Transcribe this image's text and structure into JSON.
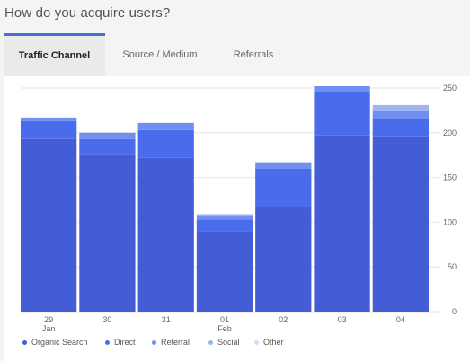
{
  "header": {
    "title": "How do you acquire users?"
  },
  "tabs": [
    {
      "label": "Traffic Channel",
      "active": true
    },
    {
      "label": "Source / Medium",
      "active": false
    },
    {
      "label": "Referrals",
      "active": false
    }
  ],
  "chart_data": {
    "type": "bar",
    "stacked": true,
    "categories": [
      "29",
      "30",
      "31",
      "01",
      "02",
      "03",
      "04"
    ],
    "category_sublabels": [
      "Jan",
      "",
      "",
      "Feb",
      "",
      "",
      ""
    ],
    "series": [
      {
        "name": "Organic Search",
        "color": "#445cd6",
        "values": [
          193,
          175,
          172,
          90,
          117,
          197,
          195
        ]
      },
      {
        "name": "Direct",
        "color": "#4a6cea",
        "values": [
          20,
          18,
          31,
          13,
          43,
          48,
          20
        ]
      },
      {
        "name": "Referral",
        "color": "#6f90f0",
        "values": [
          4,
          7,
          8,
          4,
          7,
          7,
          9
        ]
      },
      {
        "name": "Social",
        "color": "#9fb4f5",
        "values": [
          0,
          0,
          0,
          2,
          0,
          0,
          7
        ]
      },
      {
        "name": "Other",
        "color": "#d4dcf8",
        "values": [
          0,
          0,
          0,
          0,
          0,
          0,
          0
        ]
      }
    ],
    "y_ticks": [
      0,
      50,
      100,
      150,
      200,
      250
    ],
    "ylim": [
      0,
      250
    ],
    "y_axis_position": "right",
    "grid": true,
    "legend_position": "bottom-left"
  }
}
